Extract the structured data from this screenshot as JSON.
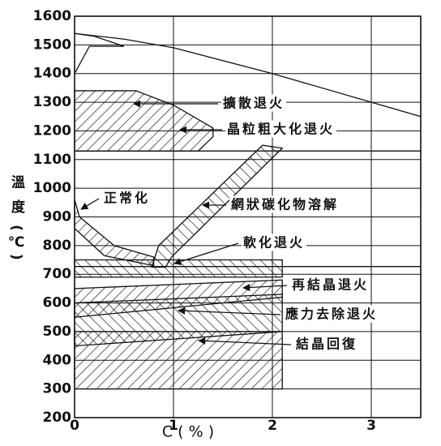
{
  "chart_data": {
    "type": "region",
    "xlabel": "C ( % )",
    "ylabel": "溫 度 (℃)",
    "xlim": [
      0,
      3.5
    ],
    "ylim": [
      200,
      1600
    ],
    "xticks": [
      0,
      1,
      2,
      3
    ],
    "yticks": [
      200,
      300,
      400,
      500,
      600,
      700,
      800,
      900,
      1000,
      1100,
      1200,
      1300,
      1400,
      1500,
      1600
    ],
    "grid": true,
    "color": "#111",
    "regions": [
      {
        "x": [
          0,
          0.62,
          1.0,
          1.4,
          1.4,
          1.25,
          0
        ],
        "y": [
          1340,
          1340,
          1290,
          1210,
          1180,
          1130,
          1130
        ]
      },
      {
        "x": [
          0.78,
          0.85,
          1.9,
          2.1,
          0.98,
          0.92
        ],
        "y": [
          725,
          800,
          1150,
          1140,
          760,
          725
        ]
      },
      {
        "x": [
          0,
          0.05,
          0.4,
          0.8,
          0.8,
          0.3,
          0
        ],
        "y": [
          960,
          900,
          800,
          760,
          730,
          765,
          860
        ]
      },
      {
        "x": [
          0,
          2.1,
          2.1,
          0
        ],
        "y": [
          750,
          750,
          690,
          690
        ]
      },
      {
        "x": [
          0,
          2.1,
          2.1,
          0
        ],
        "y": [
          650,
          680,
          620,
          550
        ]
      },
      {
        "x": [
          0,
          2.1,
          2.1,
          0
        ],
        "y": [
          600,
          630,
          500,
          450
        ]
      },
      {
        "x": [
          0,
          2.1,
          2.1,
          0
        ],
        "y": [
          500,
          500,
          300,
          300
        ]
      }
    ],
    "lines": [
      {
        "x": [
          0,
          0.5,
          1,
          2,
          3.5
        ],
        "y": [
          1540,
          1520,
          1490,
          1400,
          1250
        ]
      },
      {
        "x": [
          0,
          0.15,
          0.5
        ],
        "y": [
          1400,
          1495,
          1495
        ]
      },
      {
        "x": [
          0,
          0.2,
          0.5
        ],
        "y": [
          1540,
          1530,
          1495
        ]
      },
      {
        "x": [
          0,
          3.5
        ],
        "y": [
          727,
          727
        ]
      },
      {
        "x": [
          0,
          3.5
        ],
        "y": [
          1130,
          1130
        ]
      }
    ],
    "annotations": [
      "擴散退火",
      "晶粒粗大化退火",
      "正常化",
      "網狀碳化物溶解",
      "軟化退火",
      "再結晶退火",
      "應力去除退火",
      "結晶回復"
    ]
  }
}
